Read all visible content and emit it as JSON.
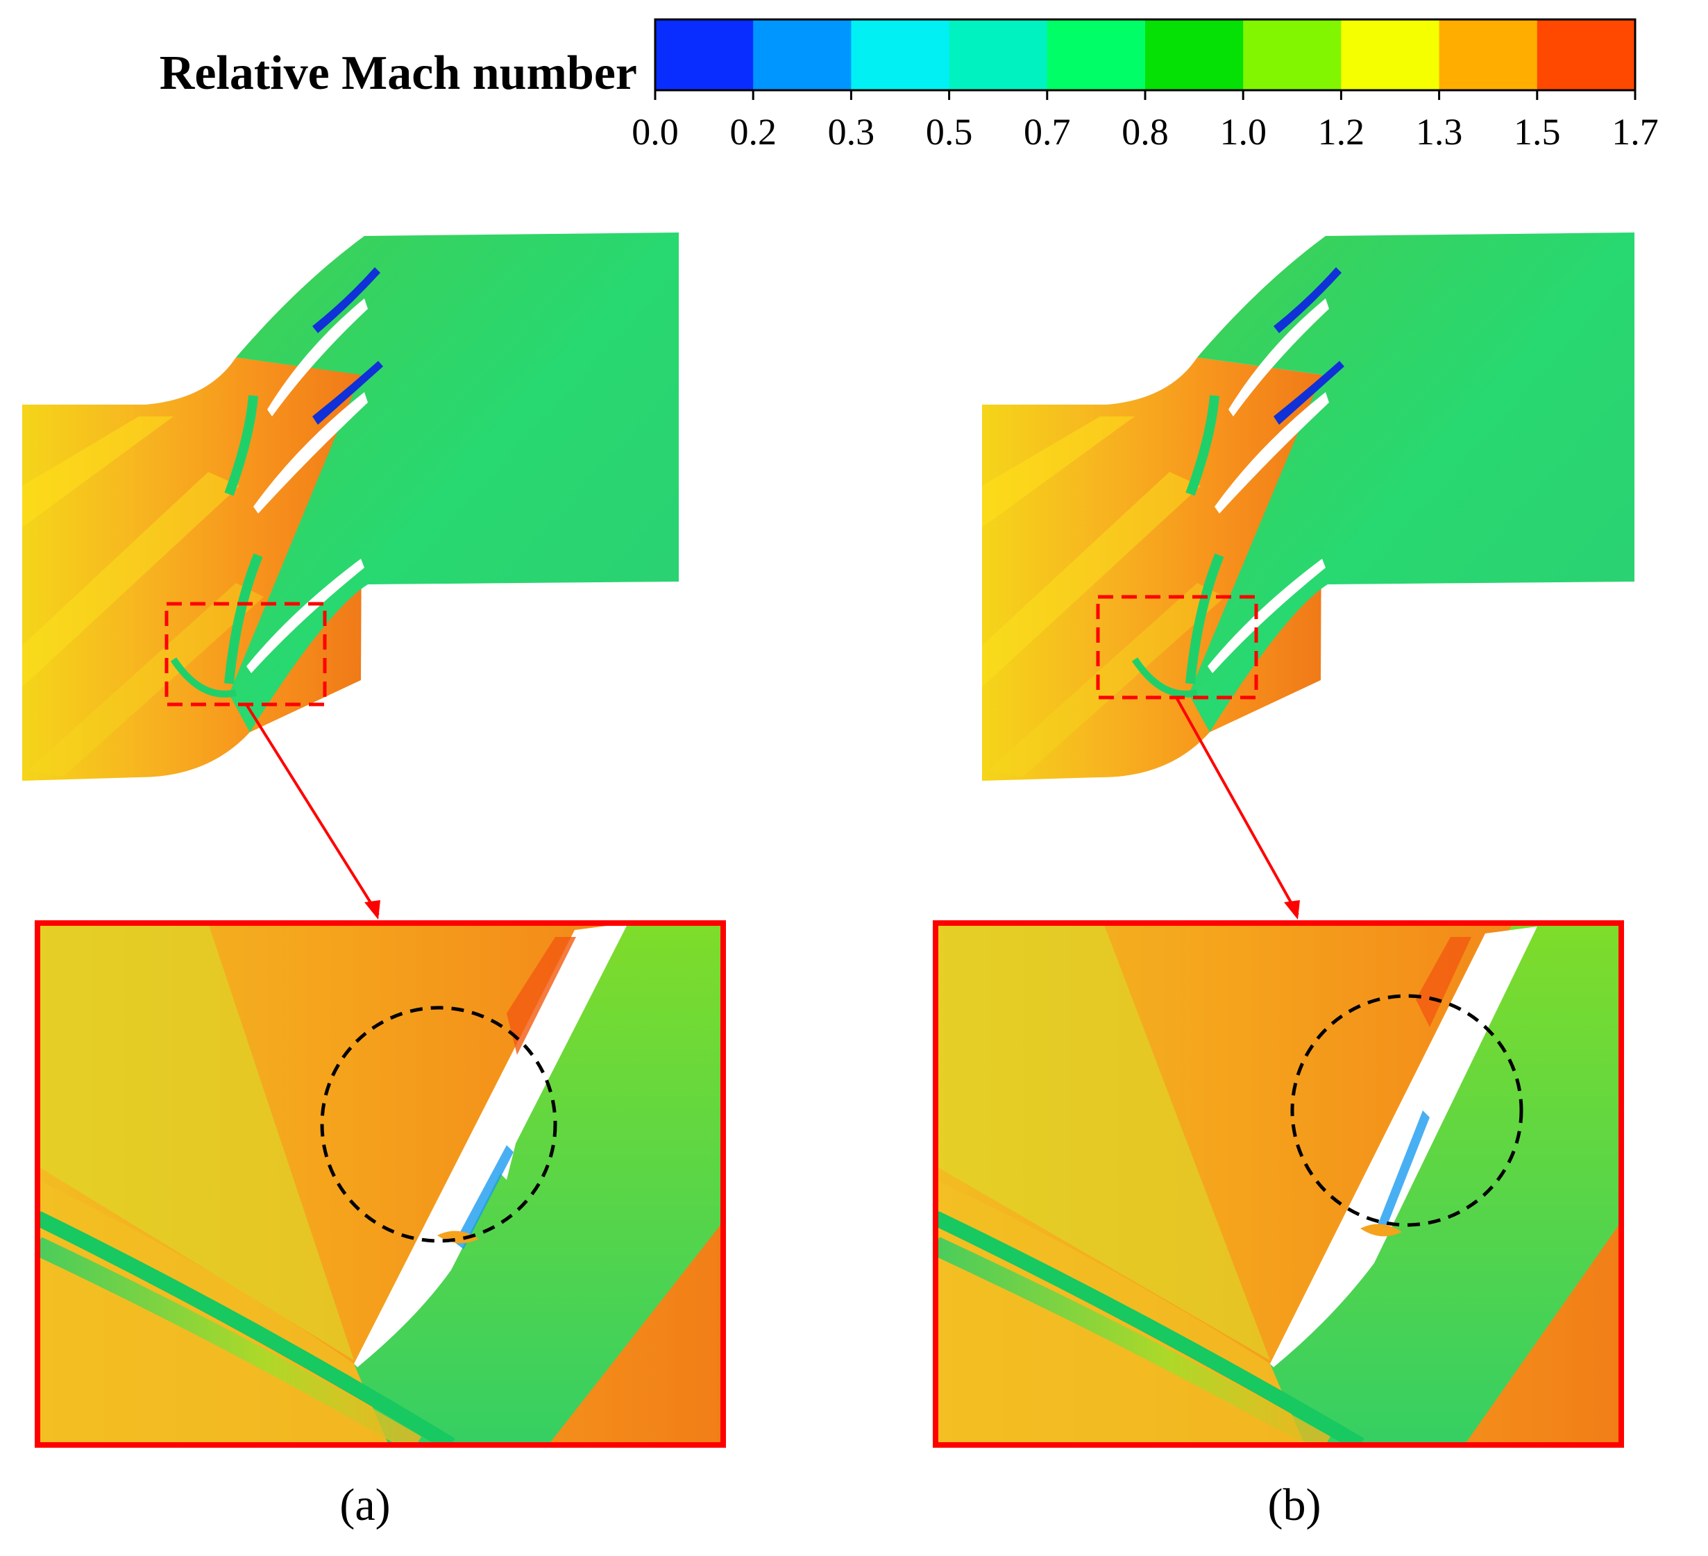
{
  "colorbar": {
    "title": "Relative Mach number",
    "ticks": [
      "0.0",
      "0.2",
      "0.3",
      "0.5",
      "0.7",
      "0.8",
      "1.0",
      "1.2",
      "1.3",
      "1.5",
      "1.7"
    ],
    "colors": [
      "#0a2dff",
      "#0096ff",
      "#00f0f4",
      "#00f2c0",
      "#00ff66",
      "#05e005",
      "#82f500",
      "#f5ff00",
      "#ffae00",
      "#ff4800"
    ]
  },
  "panels": [
    {
      "label": "(a)"
    },
    {
      "label": "(b)"
    }
  ],
  "palette": {
    "supersonic": "#f7961e",
    "subsonic": "#32d25a",
    "highlight_box": "#ff0000",
    "separation_circle": "#000000"
  }
}
